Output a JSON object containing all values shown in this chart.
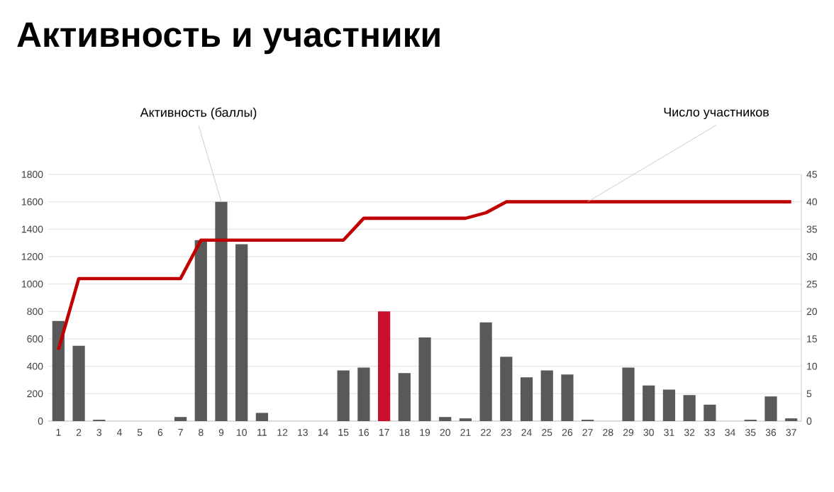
{
  "chart_data": {
    "type": "bar",
    "title": "Активность и участники",
    "categories": [
      "1",
      "2",
      "3",
      "4",
      "5",
      "6",
      "7",
      "8",
      "9",
      "10",
      "11",
      "12",
      "13",
      "14",
      "15",
      "16",
      "17",
      "18",
      "19",
      "20",
      "21",
      "22",
      "23",
      "24",
      "25",
      "26",
      "27",
      "28",
      "29",
      "30",
      "31",
      "32",
      "33",
      "34",
      "35",
      "36",
      "37"
    ],
    "series": [
      {
        "name": "Активность (баллы)",
        "colors": [
          "#595959",
          "#595959",
          "#595959",
          "#595959",
          "#595959",
          "#595959",
          "#595959",
          "#595959",
          "#595959",
          "#595959",
          "#595959",
          "#595959",
          "#595959",
          "#595959",
          "#595959",
          "#595959",
          "#c8102e",
          "#595959",
          "#595959",
          "#595959",
          "#595959",
          "#595959",
          "#595959",
          "#595959",
          "#595959",
          "#595959",
          "#595959",
          "#595959",
          "#595959",
          "#595959",
          "#595959",
          "#595959",
          "#595959",
          "#595959",
          "#595959",
          "#595959",
          "#595959"
        ],
        "values": [
          730,
          550,
          10,
          0,
          0,
          0,
          30,
          1320,
          1600,
          1290,
          60,
          0,
          0,
          0,
          370,
          390,
          800,
          350,
          610,
          30,
          20,
          720,
          470,
          320,
          370,
          340,
          10,
          0,
          390,
          260,
          230,
          190,
          120,
          0,
          10,
          180,
          20
        ]
      },
      {
        "name": "Число участников",
        "type": "line",
        "axis": "y2",
        "color": "#c00000",
        "values": [
          13,
          26,
          26,
          26,
          26,
          26,
          26,
          33,
          33,
          33,
          33,
          33,
          33,
          33,
          33,
          37,
          37,
          37,
          37,
          37,
          37,
          38,
          40,
          40,
          40,
          40,
          40,
          40,
          40,
          40,
          40,
          40,
          40,
          40,
          40,
          40,
          40
        ]
      }
    ],
    "ylim": [
      0,
      1800
    ],
    "yticks": [
      0,
      200,
      400,
      600,
      800,
      1000,
      1200,
      1400,
      1600,
      1800
    ],
    "y2lim": [
      0,
      45
    ],
    "y2ticks": [
      0,
      5,
      10,
      15,
      20,
      25,
      30,
      35,
      40,
      45
    ],
    "grid": "y"
  }
}
